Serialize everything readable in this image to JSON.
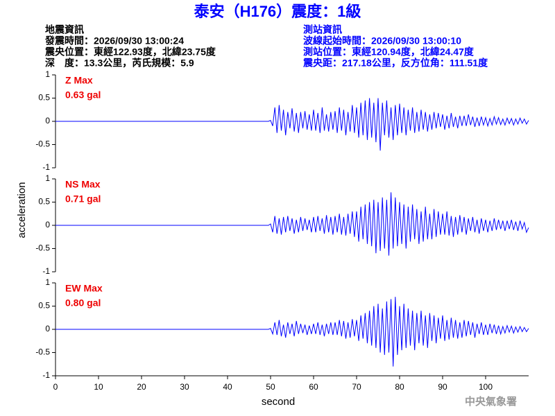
{
  "title": "泰安（H176）震度：1級",
  "event_info": {
    "heading": "地震資訊",
    "lines": [
      "發震時間：2026/09/30 13:00:24",
      "震央位置：東經122.93度，北緯23.75度",
      "深　度：13.3公里，芮氏規模：5.9"
    ]
  },
  "station_info": {
    "heading": "測站資訊",
    "lines": [
      "波線起始時間：2026/09/30 13:00:10",
      "測站位置：東經120.94度，北緯24.47度",
      "震央距：217.18公里，反方位角：111.51度"
    ]
  },
  "credit": "中央氣象署",
  "chart_data": [
    {
      "type": "line",
      "max_label": "Z Max",
      "max_value": "0.63 gal",
      "xlim": [
        0,
        110
      ],
      "ylim": [
        -1,
        1
      ],
      "yticks": [
        1,
        0.5,
        0,
        -0.5,
        -1
      ],
      "x": [
        0,
        49.5,
        50,
        50.5,
        51,
        51.5,
        52,
        52.5,
        53,
        53.5,
        54,
        54.5,
        55,
        55.5,
        56,
        56.5,
        57,
        57.5,
        58,
        58.5,
        59,
        59.5,
        60,
        60.5,
        61,
        61.5,
        62,
        62.5,
        63,
        63.5,
        64,
        64.5,
        65,
        65.5,
        66,
        66.5,
        67,
        67.5,
        68,
        68.5,
        69,
        69.5,
        70,
        70.5,
        71,
        71.5,
        72,
        72.5,
        73,
        73.5,
        74,
        74.5,
        75,
        75.5,
        76,
        76.5,
        77,
        77.5,
        78,
        78.5,
        79,
        79.5,
        80,
        80.5,
        81,
        81.5,
        82,
        82.5,
        83,
        83.5,
        84,
        84.5,
        85,
        85.5,
        86,
        86.5,
        87,
        87.5,
        88,
        88.5,
        89,
        89.5,
        90,
        90.5,
        91,
        91.5,
        92,
        92.5,
        93,
        93.5,
        94,
        94.5,
        95,
        95.5,
        96,
        96.5,
        97,
        97.5,
        98,
        98.5,
        99,
        99.5,
        100,
        100.5,
        101,
        101.5,
        102,
        102.5,
        103,
        103.5,
        104,
        104.5,
        105,
        105.5,
        106,
        106.5,
        107,
        107.5,
        108,
        108.5,
        109,
        109.5,
        110
      ],
      "series": [
        {
          "color": "#0000ff",
          "values": [
            0,
            0,
            0.02,
            -0.1,
            0.3,
            -0.25,
            0.35,
            -0.2,
            0.25,
            -0.3,
            0.2,
            -0.15,
            0.28,
            -0.22,
            0.18,
            -0.25,
            0.2,
            -0.15,
            0.22,
            -0.18,
            0.15,
            -0.2,
            0.25,
            -0.2,
            0.18,
            -0.25,
            0.3,
            -0.2,
            0.15,
            -0.22,
            0.2,
            -0.18,
            0.22,
            -0.25,
            0.3,
            -0.2,
            0.25,
            -0.3,
            0.2,
            -0.22,
            0.35,
            -0.25,
            0.3,
            -0.35,
            0.4,
            -0.3,
            0.45,
            -0.4,
            0.5,
            -0.35,
            0.4,
            -0.45,
            0.5,
            -0.63,
            0.4,
            -0.3,
            0.45,
            -0.35,
            0.3,
            -0.4,
            0.35,
            -0.3,
            0.38,
            -0.25,
            0.3,
            -0.3,
            0.25,
            -0.2,
            0.3,
            -0.25,
            0.2,
            -0.22,
            0.25,
            -0.18,
            0.2,
            -0.22,
            0.15,
            -0.18,
            0.2,
            -0.15,
            0.18,
            -0.12,
            0.15,
            -0.18,
            0.12,
            -0.15,
            0.18,
            -0.12,
            0.1,
            -0.15,
            0.12,
            -0.1,
            0.12,
            -0.1,
            0.15,
            -0.08,
            0.1,
            -0.12,
            0.08,
            -0.1,
            0.1,
            -0.08,
            0.08,
            -0.1,
            0.06,
            -0.08,
            0.1,
            -0.06,
            0.08,
            -0.07,
            0.05,
            -0.08,
            0.07,
            -0.05,
            0.06,
            -0.08,
            0.05,
            -0.06,
            0.07,
            -0.04,
            0.05,
            -0.06,
            0.02
          ]
        }
      ]
    },
    {
      "type": "line",
      "max_label": "NS Max",
      "max_value": "0.71 gal",
      "ylabel": "acceleration",
      "xlim": [
        0,
        110
      ],
      "ylim": [
        -1,
        1
      ],
      "yticks": [
        1,
        0.5,
        0,
        -0.5,
        -1
      ],
      "x": [
        0,
        49.5,
        50,
        50.5,
        51,
        51.5,
        52,
        52.5,
        53,
        53.5,
        54,
        54.5,
        55,
        55.5,
        56,
        56.5,
        57,
        57.5,
        58,
        58.5,
        59,
        59.5,
        60,
        60.5,
        61,
        61.5,
        62,
        62.5,
        63,
        63.5,
        64,
        64.5,
        65,
        65.5,
        66,
        66.5,
        67,
        67.5,
        68,
        68.5,
        69,
        69.5,
        70,
        70.5,
        71,
        71.5,
        72,
        72.5,
        73,
        73.5,
        74,
        74.5,
        75,
        75.5,
        76,
        76.5,
        77,
        77.5,
        78,
        78.5,
        79,
        79.5,
        80,
        80.5,
        81,
        81.5,
        82,
        82.5,
        83,
        83.5,
        84,
        84.5,
        85,
        85.5,
        86,
        86.5,
        87,
        87.5,
        88,
        88.5,
        89,
        89.5,
        90,
        90.5,
        91,
        91.5,
        92,
        92.5,
        93,
        93.5,
        94,
        94.5,
        95,
        95.5,
        96,
        96.5,
        97,
        97.5,
        98,
        98.5,
        99,
        99.5,
        100,
        100.5,
        101,
        101.5,
        102,
        102.5,
        103,
        103.5,
        104,
        104.5,
        105,
        105.5,
        106,
        106.5,
        107,
        107.5,
        108,
        108.5,
        109,
        109.5,
        110
      ],
      "series": [
        {
          "color": "#0000ff",
          "values": [
            0,
            0,
            0.03,
            -0.15,
            0.2,
            -0.18,
            0.15,
            -0.2,
            0.18,
            -0.15,
            0.2,
            -0.12,
            0.15,
            -0.18,
            0.12,
            -0.15,
            0.18,
            -0.12,
            0.15,
            -0.1,
            0.12,
            -0.15,
            0.18,
            -0.15,
            0.2,
            -0.12,
            0.15,
            -0.18,
            0.22,
            -0.15,
            0.18,
            -0.2,
            0.2,
            -0.15,
            0.25,
            -0.2,
            0.18,
            -0.22,
            0.25,
            -0.18,
            0.3,
            -0.25,
            0.3,
            -0.35,
            0.4,
            -0.3,
            0.45,
            -0.4,
            0.5,
            -0.45,
            0.55,
            -0.6,
            0.5,
            -0.55,
            0.6,
            -0.5,
            0.55,
            -0.65,
            0.71,
            -0.5,
            0.6,
            -0.45,
            0.5,
            -0.4,
            0.45,
            -0.5,
            0.4,
            -0.35,
            0.45,
            -0.3,
            0.35,
            -0.4,
            0.3,
            -0.35,
            0.4,
            -0.3,
            0.25,
            -0.3,
            0.35,
            -0.25,
            0.3,
            -0.2,
            0.25,
            -0.2,
            0.3,
            -0.22,
            0.2,
            -0.25,
            0.18,
            -0.2,
            0.22,
            -0.15,
            0.18,
            -0.2,
            0.15,
            -0.12,
            0.18,
            -0.15,
            0.12,
            -0.18,
            0.15,
            -0.12,
            0.12,
            -0.15,
            0.1,
            -0.12,
            0.15,
            -0.1,
            0.12,
            -0.08,
            0.1,
            -0.12,
            0.1,
            -0.08,
            0.12,
            -0.1,
            0.08,
            -0.12,
            0.1,
            -0.08,
            0.06,
            -0.15,
            -0.05
          ]
        }
      ]
    },
    {
      "type": "line",
      "max_label": "EW Max",
      "max_value": "0.80 gal",
      "xlabel": "second",
      "xlim": [
        0,
        110
      ],
      "ylim": [
        -1,
        1
      ],
      "yticks": [
        1,
        0.5,
        0,
        -0.5,
        -1
      ],
      "xticks": [
        0,
        10,
        20,
        30,
        40,
        50,
        60,
        70,
        80,
        90,
        100
      ],
      "x": [
        0,
        49.5,
        50,
        50.5,
        51,
        51.5,
        52,
        52.5,
        53,
        53.5,
        54,
        54.5,
        55,
        55.5,
        56,
        56.5,
        57,
        57.5,
        58,
        58.5,
        59,
        59.5,
        60,
        60.5,
        61,
        61.5,
        62,
        62.5,
        63,
        63.5,
        64,
        64.5,
        65,
        65.5,
        66,
        66.5,
        67,
        67.5,
        68,
        68.5,
        69,
        69.5,
        70,
        70.5,
        71,
        71.5,
        72,
        72.5,
        73,
        73.5,
        74,
        74.5,
        75,
        75.5,
        76,
        76.5,
        77,
        77.5,
        78,
        78.5,
        79,
        79.5,
        80,
        80.5,
        81,
        81.5,
        82,
        82.5,
        83,
        83.5,
        84,
        84.5,
        85,
        85.5,
        86,
        86.5,
        87,
        87.5,
        88,
        88.5,
        89,
        89.5,
        90,
        90.5,
        91,
        91.5,
        92,
        92.5,
        93,
        93.5,
        94,
        94.5,
        95,
        95.5,
        96,
        96.5,
        97,
        97.5,
        98,
        98.5,
        99,
        99.5,
        100,
        100.5,
        101,
        101.5,
        102,
        102.5,
        103,
        103.5,
        104,
        104.5,
        105,
        105.5,
        106,
        106.5,
        107,
        107.5,
        108,
        108.5,
        109,
        109.5,
        110
      ],
      "series": [
        {
          "color": "#0000ff",
          "values": [
            0,
            0,
            0.02,
            -0.1,
            0.15,
            -0.12,
            0.2,
            -0.15,
            0.1,
            -0.18,
            0.15,
            -0.1,
            0.12,
            -0.15,
            0.18,
            -0.1,
            0.12,
            -0.08,
            0.1,
            -0.12,
            0.08,
            -0.1,
            0.12,
            -0.1,
            0.15,
            -0.12,
            0.1,
            -0.15,
            0.12,
            -0.1,
            0.15,
            -0.12,
            0.15,
            -0.12,
            0.2,
            -0.15,
            0.18,
            -0.2,
            0.15,
            -0.18,
            0.22,
            -0.15,
            0.2,
            -0.25,
            0.3,
            -0.2,
            0.35,
            -0.3,
            0.4,
            -0.35,
            0.5,
            -0.4,
            0.55,
            -0.5,
            0.45,
            -0.55,
            0.6,
            -0.5,
            0.65,
            -0.8,
            0.7,
            -0.55,
            0.5,
            -0.45,
            0.55,
            -0.4,
            0.45,
            -0.35,
            0.4,
            -0.45,
            0.35,
            -0.3,
            0.4,
            -0.35,
            0.3,
            -0.4,
            0.35,
            -0.25,
            0.3,
            -0.3,
            0.25,
            -0.2,
            0.3,
            -0.25,
            0.2,
            -0.22,
            0.25,
            -0.18,
            0.2,
            -0.2,
            0.15,
            -0.18,
            0.2,
            -0.15,
            0.18,
            -0.12,
            0.15,
            -0.18,
            0.12,
            -0.1,
            0.15,
            -0.12,
            0.1,
            -0.12,
            0.12,
            -0.08,
            0.1,
            -0.1,
            0.08,
            -0.1,
            0.06,
            -0.08,
            0.08,
            -0.06,
            0.07,
            -0.08,
            0.05,
            -0.06,
            0.06,
            -0.05,
            0.04,
            -0.05,
            0.02
          ]
        }
      ]
    }
  ]
}
